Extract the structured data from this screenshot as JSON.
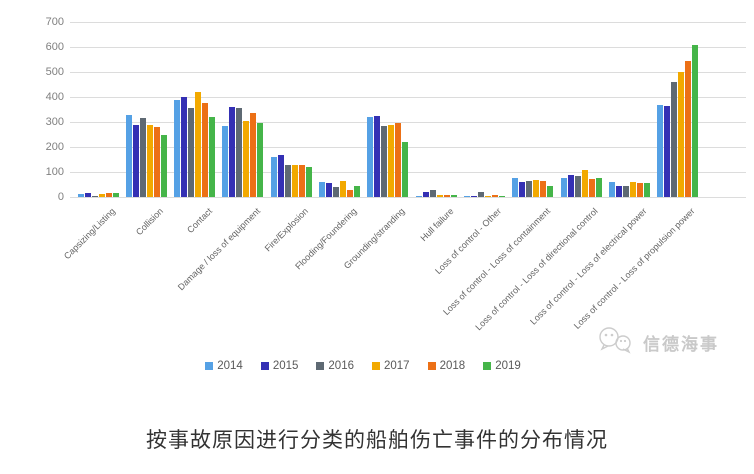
{
  "title": "按事故原因进行分类的船舶伤亡事件的分布情况",
  "watermark": {
    "brand": "信德海事"
  },
  "chart_data": {
    "type": "bar",
    "title": "",
    "xlabel": "",
    "ylabel": "",
    "ylim": [
      0,
      700
    ],
    "yticks": [
      0,
      100,
      200,
      300,
      400,
      500,
      600,
      700
    ],
    "grid": true,
    "legend_position": "bottom",
    "categories": [
      "Capsizing/Listing",
      "Collision",
      "Contact",
      "Damage / loss of equipment",
      "Fire/Explosion",
      "Flooding/Foundering",
      "Grounding/stranding",
      "Hull failure",
      "Loss of control - Other",
      "Loss of control - Loss of containment",
      "Loss of control - Loss of directional control",
      "Loss of control - Loss of electrical power",
      "Loss of control - Loss of propulsion power"
    ],
    "series": [
      {
        "name": "2014",
        "color": "#55a1e5",
        "values": [
          12,
          330,
          390,
          285,
          160,
          60,
          320,
          5,
          3,
          78,
          78,
          60,
          370
        ]
      },
      {
        "name": "2015",
        "color": "#3430b4",
        "values": [
          15,
          290,
          400,
          360,
          170,
          55,
          325,
          20,
          3,
          60,
          90,
          45,
          365
        ]
      },
      {
        "name": "2016",
        "color": "#5e6973",
        "values": [
          5,
          315,
          355,
          355,
          130,
          40,
          285,
          27,
          20,
          65,
          85,
          45,
          460
        ]
      },
      {
        "name": "2017",
        "color": "#f2a900",
        "values": [
          12,
          290,
          420,
          305,
          130,
          65,
          290,
          10,
          3,
          68,
          110,
          62,
          500
        ]
      },
      {
        "name": "2018",
        "color": "#ec7016",
        "values": [
          15,
          280,
          375,
          335,
          130,
          30,
          297,
          8,
          10,
          65,
          72,
          55,
          545
        ]
      },
      {
        "name": "2019",
        "color": "#45b549",
        "values": [
          15,
          250,
          320,
          295,
          120,
          45,
          222,
          8,
          3,
          45,
          75,
          55,
          610
        ]
      }
    ]
  }
}
